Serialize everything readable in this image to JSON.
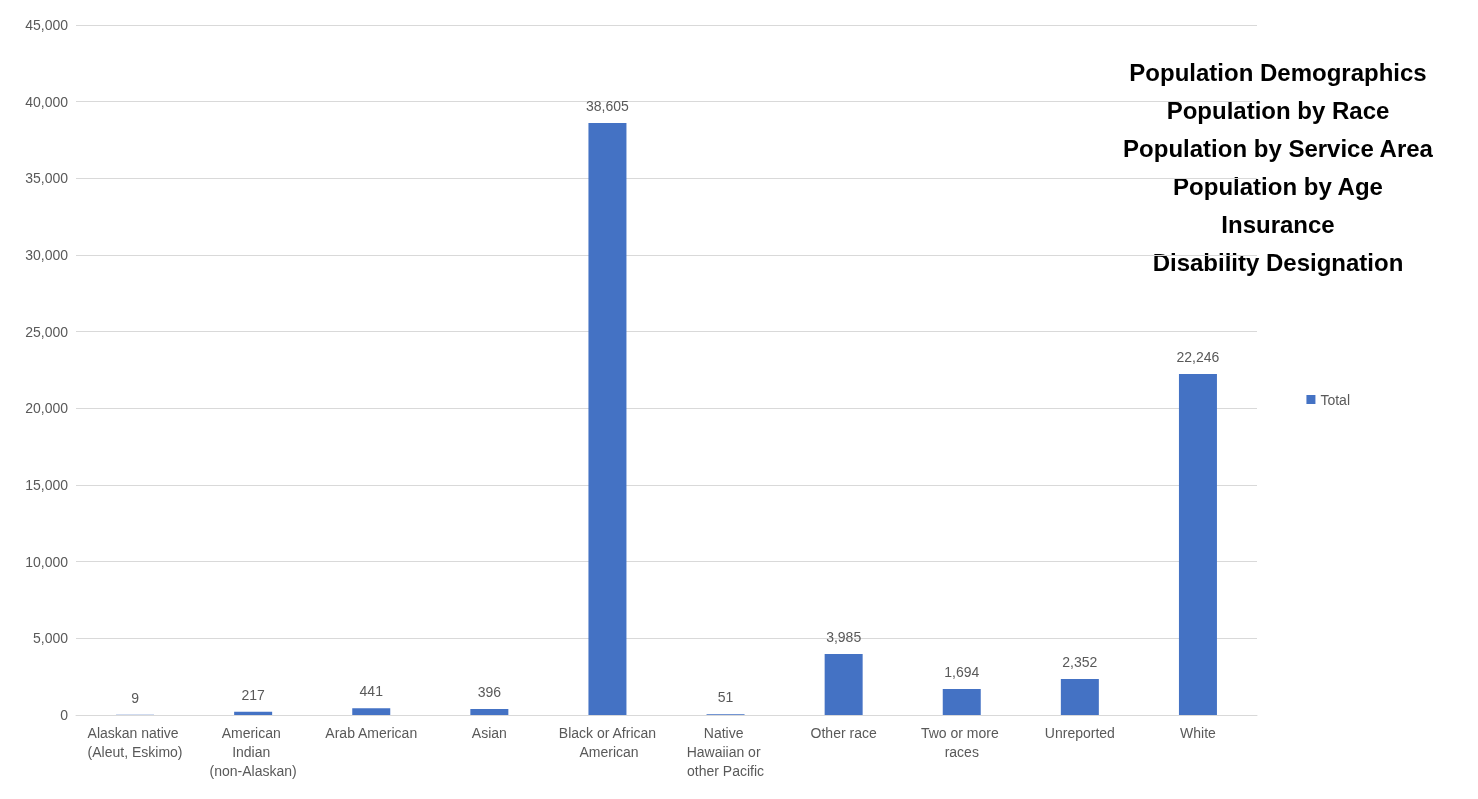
{
  "chart_data": {
    "type": "bar",
    "categories": [
      "Alaskan native (Aleut, Eskimo)",
      "American Indian (non-Alaskan)",
      "Arab American",
      "Asian",
      "Black or African American",
      "Native Hawaiian or other Pacific",
      "Other race",
      "Two or more races",
      "Unreported",
      "White"
    ],
    "series": [
      {
        "name": "Total",
        "color": "#4472c4",
        "values": [
          9,
          217,
          441,
          396,
          38605,
          51,
          3985,
          1694,
          2352,
          22246
        ],
        "value_labels": [
          "9",
          "217",
          "441",
          "396",
          "38,605",
          "51",
          "3,985",
          "1,694",
          "2,352",
          "22,246"
        ]
      }
    ],
    "ylim": [
      0,
      45000
    ],
    "yticks": [
      0,
      {
        "value": 5000,
        "label": "5,000"
      },
      {
        "value": 10000,
        "label": "10,000"
      },
      {
        "value": 15000,
        "label": "15,000"
      },
      {
        "value": 20000,
        "label": "20,000"
      },
      {
        "value": 25000,
        "label": "25,000"
      },
      {
        "value": 30000,
        "label": "30,000"
      },
      {
        "value": 35000,
        "label": "35,000"
      },
      {
        "value": 40000,
        "label": "40,000"
      },
      {
        "value": 45000,
        "label": "45,000"
      }
    ],
    "grid": "y",
    "legend": "right",
    "annotations": [
      "Population Demographics",
      "Population by Race",
      "Population by Service Area",
      "Population by Age",
      "Insurance",
      "Disability Designation"
    ]
  }
}
